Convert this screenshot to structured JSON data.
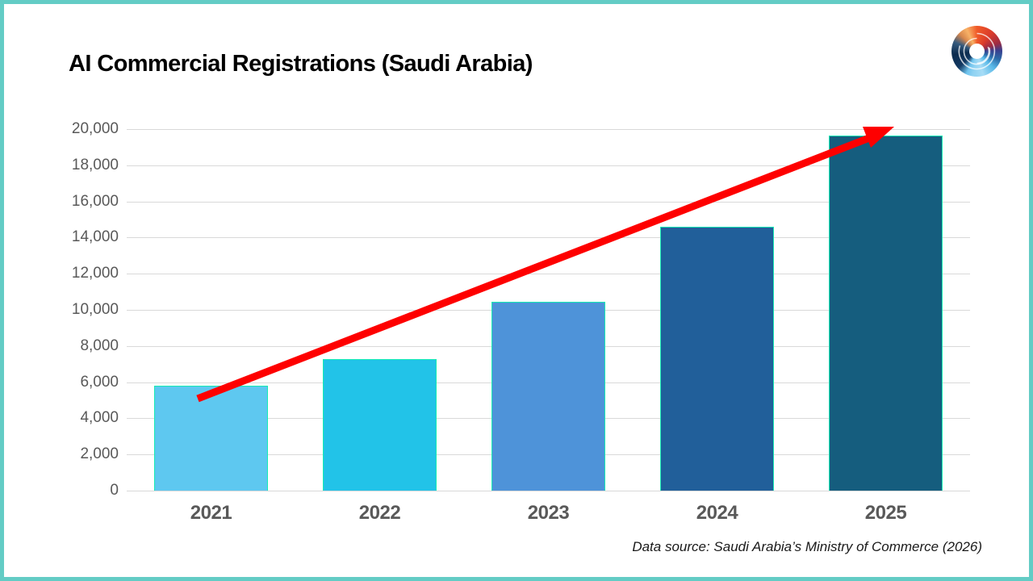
{
  "window": {
    "background": "#ffffff",
    "border_color": "#63ccc5"
  },
  "header": {
    "title": "AI Commercial Registrations (Saudi Arabia)"
  },
  "logo": {
    "name": "multicolor-swirl-logo"
  },
  "chart_data": {
    "type": "bar",
    "title": "AI Commercial Registrations (Saudi Arabia)",
    "categories": [
      "2021",
      "2022",
      "2023",
      "2024",
      "2025"
    ],
    "values": [
      5800,
      7280,
      10450,
      14600,
      19650
    ],
    "bar_colors": [
      "#5ec8f0",
      "#22c3e8",
      "#4e93d9",
      "#215f9a",
      "#155d7e"
    ],
    "bar_border_color": "#16ecb4",
    "xlabel": "",
    "ylabel": "",
    "ylim": [
      0,
      20000
    ],
    "ytick_step": 2000,
    "ytick_labels": [
      "20,000",
      "18,000",
      "16,000",
      "14,000",
      "12,000",
      "10,000",
      "8,000",
      "6,000",
      "4,000",
      "2,000",
      "0"
    ],
    "grid": true,
    "gridline_color": "#d9d9d9",
    "axis_label_color": "#595959",
    "legend_position": "none",
    "annotation": {
      "type": "trend-arrow",
      "color": "#fe0000",
      "from": "top of 2021 bar",
      "to": "top of 2025 bar"
    }
  },
  "footer": {
    "source": "Data source: Saudi Arabia’s Ministry of Commerce (2026)"
  }
}
